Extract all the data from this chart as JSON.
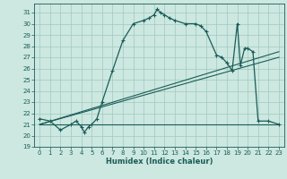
{
  "title": "",
  "xlabel": "Humidex (Indice chaleur)",
  "ylabel": "",
  "bg_color": "#cce8e0",
  "grid_color": "#a0c8c0",
  "line_color": "#1a5c58",
  "xlim": [
    -0.5,
    23.5
  ],
  "ylim": [
    19,
    31.8
  ],
  "xticks": [
    0,
    1,
    2,
    3,
    4,
    5,
    6,
    7,
    8,
    9,
    10,
    11,
    12,
    13,
    14,
    15,
    16,
    17,
    18,
    19,
    20,
    21,
    22,
    23
  ],
  "yticks": [
    19,
    20,
    21,
    22,
    23,
    24,
    25,
    26,
    27,
    28,
    29,
    30,
    31
  ],
  "main_series": [
    [
      0,
      21.5
    ],
    [
      1,
      21.3
    ],
    [
      2,
      20.5
    ],
    [
      3,
      21.0
    ],
    [
      3.5,
      21.3
    ],
    [
      4,
      20.8
    ],
    [
      4.3,
      20.3
    ],
    [
      4.7,
      20.8
    ],
    [
      5,
      21.0
    ],
    [
      5.5,
      21.5
    ],
    [
      6,
      23.0
    ],
    [
      7,
      25.8
    ],
    [
      8,
      28.5
    ],
    [
      9,
      30.0
    ],
    [
      10,
      30.3
    ],
    [
      10.5,
      30.5
    ],
    [
      11,
      30.8
    ],
    [
      11.3,
      31.3
    ],
    [
      11.6,
      31.0
    ],
    [
      12,
      30.8
    ],
    [
      12.5,
      30.5
    ],
    [
      13,
      30.3
    ],
    [
      14,
      30.0
    ],
    [
      15,
      30.0
    ],
    [
      15.5,
      29.8
    ],
    [
      16,
      29.3
    ],
    [
      17,
      27.2
    ],
    [
      17.5,
      27.0
    ],
    [
      18,
      26.5
    ],
    [
      18.5,
      25.8
    ],
    [
      19,
      30.0
    ],
    [
      19.3,
      26.3
    ],
    [
      19.7,
      27.8
    ],
    [
      20,
      27.8
    ],
    [
      20.5,
      27.5
    ],
    [
      21,
      21.3
    ],
    [
      22,
      21.3
    ],
    [
      23,
      21.0
    ]
  ],
  "line_flat": [
    [
      0,
      21.0
    ],
    [
      23,
      21.0
    ]
  ],
  "line_diag1": [
    [
      0,
      21.0
    ],
    [
      23,
      27.0
    ]
  ],
  "line_diag2": [
    [
      0,
      21.0
    ],
    [
      23,
      27.5
    ]
  ]
}
